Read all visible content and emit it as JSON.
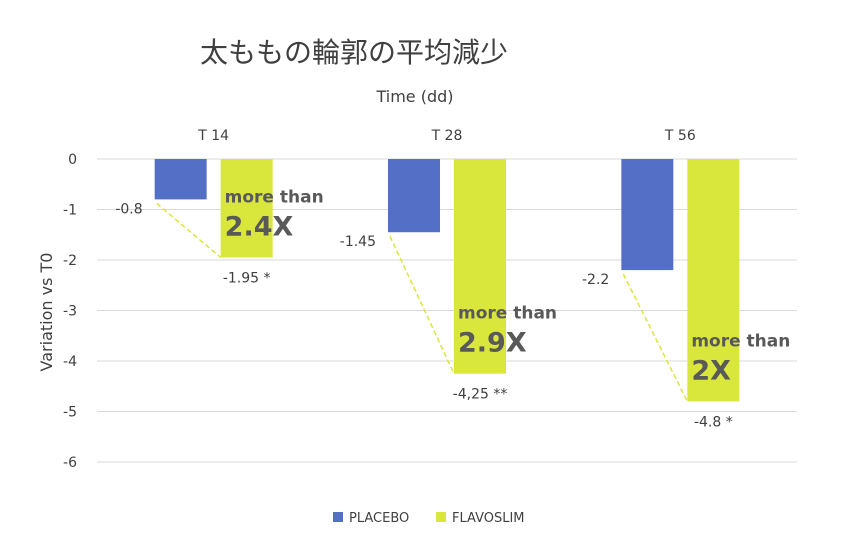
{
  "chart_data": {
    "type": "bar",
    "title": "太ももの輪郭の平均減少",
    "xlabel": "Time (dd)",
    "ylabel": "Variation vs T0",
    "ylim": [
      -6,
      0
    ],
    "yticks": [
      "0",
      "-1",
      "-2",
      "-3",
      "-4",
      "-5",
      "-6"
    ],
    "x_axis_position": "top",
    "grid": true,
    "legend_position": "bottom",
    "categories": [
      "T 14",
      "T 28",
      "T 56"
    ],
    "series": [
      {
        "name": "PLACEBO",
        "color": "#5470C6",
        "values": [
          -0.8,
          -1.45,
          -2.2
        ],
        "labels": [
          "-0.8",
          "-1.45",
          "-2.2"
        ]
      },
      {
        "name": "FLAVOSLIM",
        "color": "#D9E63C",
        "values": [
          -1.95,
          -4.25,
          -4.8
        ],
        "labels": [
          "-1.95 *",
          "-4,25 **",
          "-4.8 *"
        ]
      }
    ],
    "annotations": [
      {
        "category": "T 14",
        "text_top": "more than",
        "text_big": "2.4X"
      },
      {
        "category": "T 28",
        "text_top": "more than",
        "text_big": "2.9X"
      },
      {
        "category": "T 56",
        "text_top": "more than",
        "text_big": "2X"
      }
    ]
  }
}
